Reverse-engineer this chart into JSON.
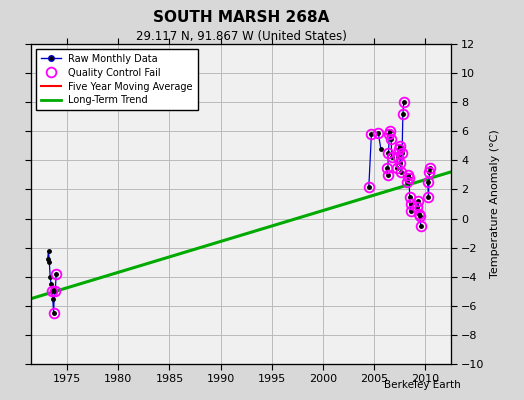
{
  "title": "SOUTH MARSH 268A",
  "subtitle": "29.117 N, 91.867 W (United States)",
  "ylabel": "Temperature Anomaly (°C)",
  "credit": "Berkeley Earth",
  "xlim": [
    1971.5,
    2012.5
  ],
  "ylim": [
    -10,
    12
  ],
  "yticks": [
    -10,
    -8,
    -6,
    -4,
    -2,
    0,
    2,
    4,
    6,
    8,
    10,
    12
  ],
  "xticks": [
    1975,
    1980,
    1985,
    1990,
    1995,
    2000,
    2005,
    2010
  ],
  "bg_color": "#d8d8d8",
  "plot_bg_color": "#f0f0f0",
  "clusters": [
    {
      "x": [
        1973.08,
        1973.17,
        1973.25,
        1973.33,
        1973.42,
        1973.5,
        1973.58,
        1973.67,
        1973.75,
        1973.83,
        1973.92
      ],
      "y": [
        -2.8,
        -2.2,
        -3.0,
        -4.0,
        -4.5,
        -5.0,
        -5.5,
        -6.5,
        -4.8,
        -5.0,
        -3.8
      ],
      "qc": [
        false,
        false,
        false,
        false,
        false,
        true,
        false,
        true,
        false,
        true,
        true
      ]
    },
    {
      "x": [
        2004.5,
        2004.75
      ],
      "y": [
        2.2,
        5.8
      ],
      "qc": [
        true,
        true
      ]
    },
    {
      "x": [
        2005.42,
        2005.67
      ],
      "y": [
        5.9,
        4.8
      ],
      "qc": [
        true,
        false
      ]
    },
    {
      "x": [
        2006.25,
        2006.33,
        2006.42,
        2006.5,
        2006.58,
        2006.67,
        2006.75
      ],
      "y": [
        3.5,
        3.0,
        4.5,
        5.8,
        6.0,
        5.5,
        4.2
      ],
      "qc": [
        true,
        true,
        true,
        true,
        true,
        true,
        true
      ]
    },
    {
      "x": [
        2007.25,
        2007.33,
        2007.42,
        2007.5,
        2007.58,
        2007.67,
        2007.75,
        2007.83,
        2007.92
      ],
      "y": [
        3.5,
        4.2,
        4.8,
        5.0,
        3.8,
        3.2,
        4.5,
        7.2,
        8.0
      ],
      "qc": [
        true,
        true,
        true,
        true,
        true,
        true,
        true,
        true,
        true
      ]
    },
    {
      "x": [
        2008.25,
        2008.33,
        2008.42,
        2008.5,
        2008.58,
        2008.67
      ],
      "y": [
        2.5,
        3.0,
        2.8,
        1.5,
        0.5,
        1.0
      ],
      "qc": [
        true,
        true,
        true,
        true,
        true,
        true
      ]
    },
    {
      "x": [
        2009.25,
        2009.33,
        2009.42,
        2009.5,
        2009.58
      ],
      "y": [
        0.8,
        1.2,
        0.3,
        0.2,
        -0.5
      ],
      "qc": [
        true,
        true,
        true,
        true,
        true
      ]
    },
    {
      "x": [
        2010.25,
        2010.33,
        2010.42,
        2010.5
      ],
      "y": [
        2.5,
        1.5,
        3.2,
        3.5
      ],
      "qc": [
        true,
        true,
        true,
        true
      ]
    }
  ],
  "trend_x": [
    1971.5,
    2012.5
  ],
  "trend_y": [
    -5.5,
    3.2
  ],
  "line_color": "#0000cc",
  "dot_color": "black",
  "qc_color": "magenta",
  "trend_color": "#00aa00",
  "mavg_color": "red",
  "grid_color": "#bbbbbb"
}
